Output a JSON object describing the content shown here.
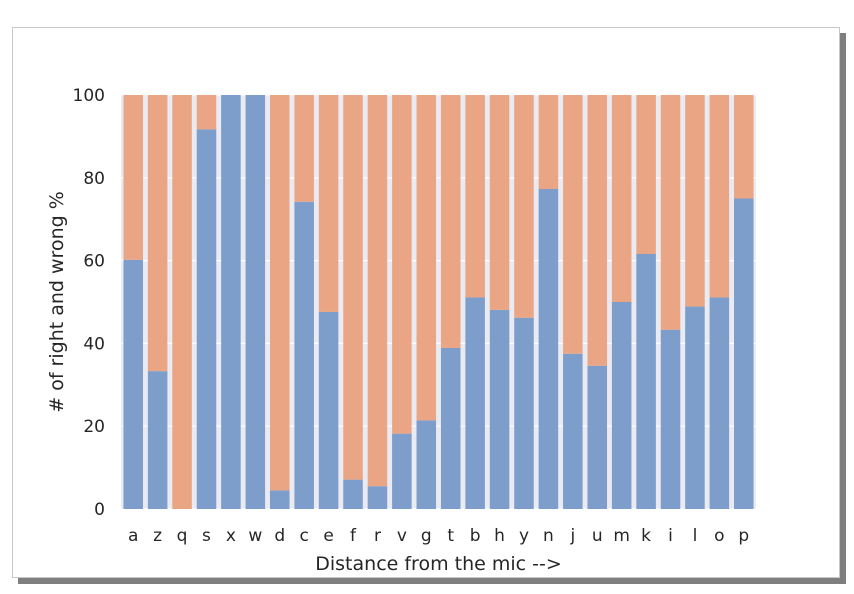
{
  "chart_data": {
    "type": "bar",
    "stacked": true,
    "title": "",
    "xlabel": "Distance from the mic -->",
    "ylabel": "# of right and wrong %",
    "ylim": [
      0,
      100
    ],
    "yticks": [
      0,
      20,
      40,
      60,
      80,
      100
    ],
    "grid": true,
    "legend": "none",
    "categories": [
      "a",
      "z",
      "q",
      "s",
      "x",
      "w",
      "d",
      "c",
      "e",
      "f",
      "r",
      "v",
      "g",
      "t",
      "b",
      "h",
      "y",
      "n",
      "j",
      "u",
      "m",
      "k",
      "i",
      "l",
      "o",
      "p"
    ],
    "series": [
      {
        "color": "#7d9ecb",
        "values": [
          60.2,
          33.3,
          0,
          91.7,
          100,
          100,
          4.5,
          74.2,
          47.6,
          7.1,
          5.5,
          18.2,
          21.4,
          38.9,
          51.1,
          48.1,
          46.2,
          77.3,
          37.5,
          34.6,
          50.0,
          61.6,
          43.3,
          48.9,
          51.1,
          75.0
        ]
      },
      {
        "color": "#e9a584",
        "values": [
          39.8,
          66.7,
          100,
          8.3,
          0,
          0,
          95.5,
          25.8,
          52.4,
          92.9,
          94.5,
          81.8,
          78.6,
          61.1,
          48.9,
          51.9,
          53.8,
          22.7,
          62.5,
          65.4,
          50.0,
          38.4,
          56.7,
          51.1,
          48.9,
          25.0
        ]
      }
    ]
  }
}
